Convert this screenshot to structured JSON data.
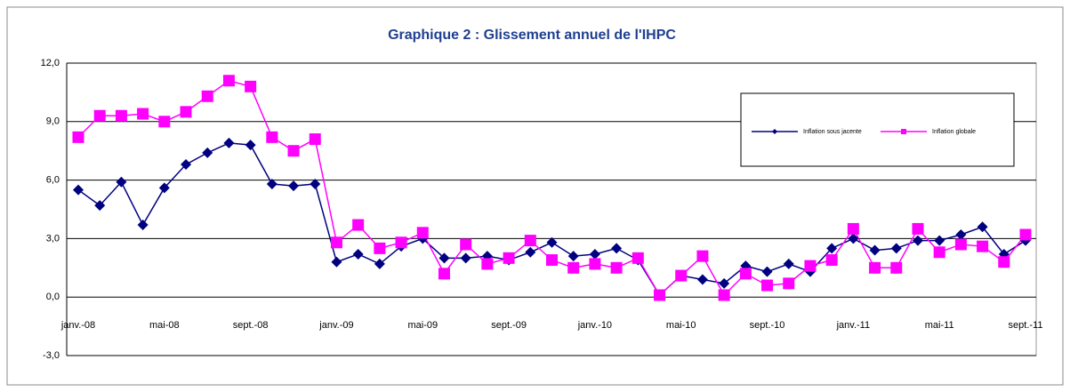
{
  "chart_data": {
    "type": "line",
    "title": "Graphique 2 : Glissement annuel de l'IHPC",
    "categories": [
      "janv.-08",
      null,
      null,
      null,
      "mai-08",
      null,
      null,
      null,
      "sept.-08",
      null,
      null,
      null,
      "janv.-09",
      null,
      null,
      null,
      "mai-09",
      null,
      null,
      null,
      "sept.-09",
      null,
      null,
      null,
      "janv.-10",
      null,
      null,
      null,
      "mai-10",
      null,
      null,
      null,
      "sept.-10",
      null,
      null,
      null,
      "janv.-11",
      null,
      null,
      null,
      "mai-11",
      null,
      null,
      null,
      "sept.-11"
    ],
    "series": [
      {
        "name": "Inflation sous jacente",
        "color": "#000080",
        "marker": "diamond",
        "values": [
          5.5,
          4.7,
          5.9,
          3.7,
          5.6,
          6.8,
          7.4,
          7.9,
          7.8,
          5.8,
          5.7,
          5.8,
          1.8,
          2.2,
          1.7,
          2.6,
          3.0,
          2.0,
          2.0,
          2.1,
          1.9,
          2.3,
          2.8,
          2.1,
          2.2,
          2.5,
          1.9,
          0.1,
          1.1,
          0.9,
          0.7,
          1.6,
          1.3,
          1.7,
          1.3,
          2.5,
          3.0,
          2.4,
          2.5,
          2.9,
          2.9,
          3.2,
          3.6,
          2.2,
          2.9
        ]
      },
      {
        "name": "Inflation globale",
        "color": "#ff00ff",
        "marker": "square",
        "values": [
          8.2,
          9.3,
          9.3,
          9.4,
          9.0,
          9.5,
          10.3,
          11.1,
          10.8,
          8.2,
          7.5,
          8.1,
          2.8,
          3.7,
          2.5,
          2.8,
          3.3,
          1.2,
          2.7,
          1.7,
          2.0,
          2.9,
          1.9,
          1.5,
          1.7,
          1.5,
          2.0,
          0.1,
          1.1,
          2.1,
          0.1,
          1.2,
          0.6,
          0.7,
          1.6,
          1.9,
          3.5,
          1.5,
          1.5,
          3.5,
          2.3,
          2.7,
          2.6,
          1.8,
          3.2
        ]
      }
    ],
    "ylim": [
      -3,
      12
    ],
    "yticks": [
      {
        "value": -3,
        "label": "-3,0"
      },
      {
        "value": 0,
        "label": "0,0"
      },
      {
        "value": 3,
        "label": "3,0"
      },
      {
        "value": 6,
        "label": "6,0"
      },
      {
        "value": 9,
        "label": "9,0"
      },
      {
        "value": 12,
        "label": "12,0"
      }
    ],
    "grid": true,
    "legend": "upper right"
  }
}
